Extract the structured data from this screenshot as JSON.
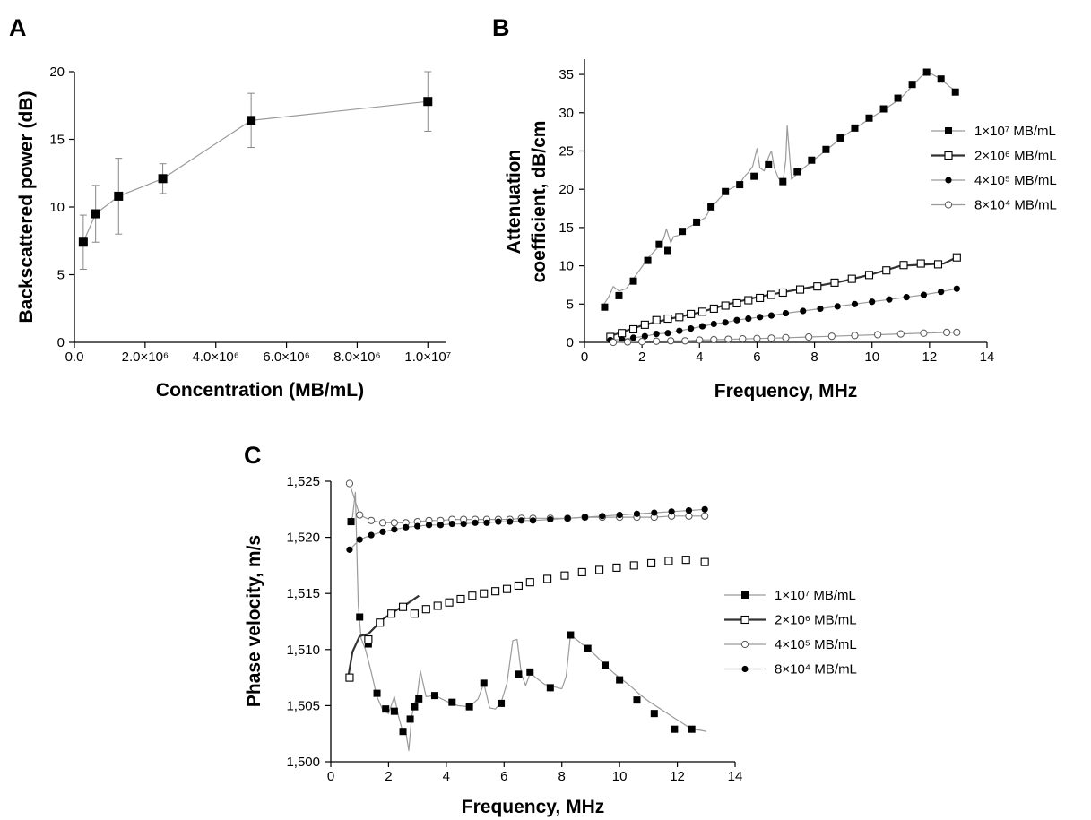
{
  "chart_data": [
    {
      "id": "A",
      "type": "line",
      "panel_label": "A",
      "xlabel": "Concentration (MB/mL)",
      "ylabel": "Backscattered power (dB)",
      "xlim": [
        0,
        10500000
      ],
      "ylim": [
        0,
        20
      ],
      "x_ticks": [
        0,
        2000000,
        4000000,
        6000000,
        8000000,
        10000000
      ],
      "x_tick_labels": [
        "0.0",
        "2.0×10⁶",
        "4.0×10⁶",
        "6.0×10⁶",
        "8.0×10⁶",
        "1.0×10⁷"
      ],
      "y_ticks": [
        0,
        5,
        10,
        15,
        20
      ],
      "y_tick_labels": [
        "0",
        "5",
        "10",
        "15",
        "20"
      ],
      "series": [
        {
          "marker": "square-filled",
          "line_color": "#9a9a9a",
          "x": [
            250000,
            600000,
            1250000,
            2500000,
            5000000,
            10000000
          ],
          "y": [
            7.4,
            9.5,
            10.8,
            12.1,
            16.4,
            17.8
          ],
          "err": [
            2.0,
            2.1,
            2.8,
            1.1,
            2.0,
            2.2
          ]
        }
      ]
    },
    {
      "id": "B",
      "type": "line",
      "panel_label": "B",
      "xlabel": "Frequency, MHz",
      "ylabel": [
        "Attenuation",
        "coefficient, dB/cm"
      ],
      "xlim": [
        0,
        14
      ],
      "ylim": [
        0,
        37
      ],
      "x_ticks": [
        0,
        2,
        4,
        6,
        8,
        10,
        12,
        14
      ],
      "x_tick_labels": [
        "0",
        "2",
        "4",
        "6",
        "8",
        "10",
        "12",
        "14"
      ],
      "y_ticks": [
        0,
        5,
        10,
        15,
        20,
        25,
        30,
        35
      ],
      "y_tick_labels": [
        "0",
        "5",
        "10",
        "15",
        "20",
        "25",
        "30",
        "35"
      ],
      "legend_position": "right",
      "series": [
        {
          "name": "1×10⁷ MB/mL",
          "marker": "square-filled",
          "line_color": "#9a9a9a",
          "line_width": 1.2,
          "markers_x": [
            0.7,
            1.2,
            1.7,
            2.2,
            2.6,
            2.9,
            3.4,
            3.9,
            4.4,
            4.9,
            5.4,
            5.9,
            6.4,
            6.9,
            7.4,
            7.9,
            8.4,
            8.9,
            9.4,
            9.9,
            10.4,
            10.9,
            11.4,
            11.9,
            12.4,
            12.9
          ],
          "markers_y": [
            4.6,
            6.1,
            8.0,
            10.7,
            12.8,
            12.0,
            14.5,
            15.7,
            17.7,
            19.7,
            20.6,
            21.7,
            23.2,
            21.0,
            22.3,
            23.8,
            25.2,
            26.7,
            28.0,
            29.3,
            30.5,
            31.9,
            33.7,
            35.3,
            34.4,
            32.7
          ],
          "curve_x": [
            0.6,
            0.85,
            1.0,
            1.2,
            1.45,
            1.7,
            1.95,
            2.2,
            2.5,
            2.75,
            2.85,
            3.0,
            3.1,
            3.3,
            3.6,
            3.9,
            4.2,
            4.4,
            4.7,
            4.95,
            5.2,
            5.4,
            5.55,
            5.7,
            5.85,
            6.0,
            6.1,
            6.25,
            6.4,
            6.5,
            6.6,
            6.75,
            6.9,
            7.0,
            7.05,
            7.2,
            7.6,
            8.0,
            8.5,
            9.0,
            9.5,
            10.0,
            10.5,
            11.0,
            11.4,
            11.7,
            11.9,
            12.1,
            12.4,
            12.7,
            13.0
          ],
          "curve_y": [
            4.5,
            6.0,
            7.3,
            6.7,
            7.0,
            8.3,
            9.6,
            11.0,
            12.2,
            13.5,
            14.8,
            13.0,
            13.8,
            14.0,
            15.0,
            15.6,
            16.3,
            17.6,
            18.8,
            19.8,
            20.3,
            20.7,
            21.6,
            22.2,
            23.0,
            25.3,
            22.8,
            22.4,
            24.2,
            25.0,
            22.8,
            21.4,
            20.9,
            23.8,
            28.3,
            21.3,
            22.7,
            23.9,
            25.4,
            26.9,
            28.2,
            29.4,
            30.6,
            31.9,
            33.5,
            34.7,
            35.3,
            35.0,
            34.4,
            33.4,
            32.6
          ]
        },
        {
          "name": "2×10⁶ MB/mL",
          "marker": "square-open",
          "line_color": "#333333",
          "line_width": 2.2,
          "markers_x": [
            0.9,
            1.3,
            1.7,
            2.1,
            2.5,
            2.9,
            3.3,
            3.7,
            4.1,
            4.5,
            4.9,
            5.3,
            5.7,
            6.1,
            6.5,
            6.9,
            7.5,
            8.1,
            8.7,
            9.3,
            9.9,
            10.5,
            11.1,
            11.7,
            12.3,
            12.95
          ],
          "markers_y": [
            0.7,
            1.2,
            1.7,
            2.3,
            2.9,
            3.1,
            3.3,
            3.7,
            4.0,
            4.4,
            4.8,
            5.1,
            5.5,
            5.8,
            6.2,
            6.5,
            6.9,
            7.3,
            7.8,
            8.3,
            8.8,
            9.4,
            10.1,
            10.3,
            10.2,
            11.1
          ],
          "curve_x": [
            0.8,
            2.0,
            3.0,
            4.0,
            5.0,
            6.0,
            7.0,
            8.0,
            9.0,
            10.0,
            11.0,
            12.0,
            12.5,
            13.0
          ],
          "curve_y": [
            0.7,
            2.2,
            3.1,
            3.9,
            5.0,
            5.9,
            6.6,
            7.3,
            8.0,
            8.9,
            10.0,
            10.2,
            10.3,
            11.2
          ]
        },
        {
          "name": "4×10⁵ MB/mL",
          "marker": "circle-filled",
          "line_color": "#9a9a9a",
          "line_width": 1.2,
          "markers_x": [
            0.9,
            1.3,
            1.7,
            2.1,
            2.5,
            2.9,
            3.3,
            3.7,
            4.1,
            4.5,
            4.9,
            5.3,
            5.7,
            6.1,
            6.5,
            7.0,
            7.6,
            8.2,
            8.8,
            9.4,
            10.0,
            10.6,
            11.2,
            11.8,
            12.4,
            12.95
          ],
          "markers_y": [
            0.3,
            0.4,
            0.6,
            0.8,
            1.1,
            1.2,
            1.5,
            1.8,
            2.1,
            2.4,
            2.6,
            2.9,
            3.1,
            3.3,
            3.5,
            3.8,
            4.1,
            4.4,
            4.7,
            5.0,
            5.3,
            5.6,
            5.9,
            6.2,
            6.6,
            7.0
          ]
        },
        {
          "name": "8×10⁴ MB/mL",
          "marker": "circle-open",
          "line_color": "#9a9a9a",
          "line_width": 1.2,
          "markers_x": [
            1.0,
            1.5,
            2.0,
            2.5,
            3.0,
            3.5,
            4.0,
            4.5,
            5.0,
            5.5,
            6.0,
            6.5,
            7.0,
            7.8,
            8.6,
            9.4,
            10.2,
            11.0,
            11.8,
            12.6,
            12.95
          ],
          "markers_y": [
            0.0,
            0.05,
            0.1,
            0.15,
            0.2,
            0.2,
            0.3,
            0.35,
            0.4,
            0.45,
            0.5,
            0.55,
            0.6,
            0.7,
            0.8,
            0.9,
            1.0,
            1.1,
            1.2,
            1.3,
            1.3
          ]
        }
      ]
    },
    {
      "id": "C",
      "type": "line",
      "panel_label": "C",
      "xlabel": "Frequency, MHz",
      "ylabel": "Phase velocity, m/s",
      "xlim": [
        0,
        14
      ],
      "ylim": [
        1500,
        1525
      ],
      "x_ticks": [
        0,
        2,
        4,
        6,
        8,
        10,
        12,
        14
      ],
      "x_tick_labels": [
        "0",
        "2",
        "4",
        "6",
        "8",
        "10",
        "12",
        "14"
      ],
      "y_ticks": [
        1500,
        1505,
        1510,
        1515,
        1520,
        1525
      ],
      "y_tick_labels": [
        "1,500",
        "1,505",
        "1,510",
        "1,515",
        "1,520",
        "1,525"
      ],
      "legend_position": "right",
      "series": [
        {
          "name": "1×10⁷ MB/mL",
          "marker": "square-filled",
          "line_color": "#9a9a9a",
          "line_width": 1.2,
          "markers_x": [
            0.7,
            1.0,
            1.3,
            1.6,
            1.9,
            2.2,
            2.5,
            2.75,
            2.9,
            3.05,
            3.6,
            4.2,
            4.8,
            5.3,
            5.9,
            6.5,
            6.9,
            7.6,
            8.3,
            8.9,
            9.5,
            10.0,
            10.6,
            11.2,
            11.9,
            12.5
          ],
          "markers_y": [
            1521.4,
            1512.9,
            1510.5,
            1506.1,
            1504.7,
            1504.5,
            1502.7,
            1503.8,
            1504.9,
            1505.6,
            1505.9,
            1505.3,
            1504.9,
            1507.0,
            1505.2,
            1507.8,
            1508.0,
            1506.6,
            1511.3,
            1510.1,
            1508.6,
            1507.3,
            1505.5,
            1504.3,
            1502.9,
            1502.9
          ],
          "curve_x": [
            0.6,
            0.75,
            0.85,
            0.95,
            1.05,
            1.2,
            1.4,
            1.6,
            1.8,
            2.0,
            2.2,
            2.35,
            2.5,
            2.6,
            2.7,
            2.8,
            2.9,
            3.0,
            3.1,
            3.3,
            3.6,
            4.0,
            4.4,
            4.8,
            5.1,
            5.3,
            5.5,
            5.7,
            5.9,
            6.1,
            6.3,
            6.45,
            6.6,
            6.75,
            6.9,
            7.1,
            7.4,
            7.7,
            8.0,
            8.15,
            8.3,
            8.6,
            8.9,
            9.2,
            9.5,
            9.8,
            10.1,
            10.4,
            10.7,
            11.0,
            11.3,
            11.6,
            11.9,
            12.2,
            12.5,
            12.8,
            13.0
          ],
          "curve_y": [
            1521.4,
            1521.8,
            1524.0,
            1514.0,
            1511.0,
            1510.0,
            1508.0,
            1505.8,
            1504.6,
            1504.3,
            1505.8,
            1504.0,
            1502.6,
            1502.6,
            1501.0,
            1504.0,
            1505.2,
            1506.0,
            1508.1,
            1505.8,
            1505.9,
            1505.4,
            1505.0,
            1504.9,
            1505.6,
            1507.0,
            1504.8,
            1504.7,
            1505.3,
            1507.0,
            1510.8,
            1510.9,
            1507.8,
            1506.8,
            1507.9,
            1507.5,
            1506.9,
            1506.7,
            1506.5,
            1507.6,
            1511.3,
            1510.7,
            1510.1,
            1509.4,
            1508.6,
            1507.9,
            1507.3,
            1506.7,
            1506.0,
            1505.4,
            1504.9,
            1504.4,
            1503.9,
            1503.4,
            1502.9,
            1502.8,
            1502.7
          ]
        },
        {
          "name": "2×10⁶ MB/mL",
          "marker": "square-open",
          "line_color": "#333333",
          "line_width": 2.2,
          "markers_x": [
            0.65,
            1.3,
            1.7,
            2.1,
            2.5,
            2.9,
            3.3,
            3.7,
            4.1,
            4.5,
            4.9,
            5.3,
            5.7,
            6.1,
            6.5,
            6.9,
            7.5,
            8.1,
            8.7,
            9.3,
            9.9,
            10.5,
            11.1,
            11.7,
            12.3,
            12.95
          ],
          "markers_y": [
            1507.5,
            1510.9,
            1512.4,
            1513.2,
            1513.8,
            1513.2,
            1513.6,
            1513.9,
            1514.2,
            1514.5,
            1514.8,
            1515.0,
            1515.2,
            1515.4,
            1515.7,
            1516.0,
            1516.3,
            1516.6,
            1516.9,
            1517.1,
            1517.3,
            1517.5,
            1517.7,
            1517.9,
            1518.0,
            1517.8
          ],
          "curve_x": [
            0.6,
            0.75,
            1.0,
            1.3,
            1.8,
            2.2,
            2.6,
            3.05
          ],
          "curve_y": [
            1507.5,
            1509.8,
            1511.2,
            1511.4,
            1512.7,
            1513.4,
            1514.0,
            1514.8
          ]
        },
        {
          "name": "4×10⁵ MB/mL",
          "marker": "circle-open",
          "line_color": "#9a9a9a",
          "line_width": 1.2,
          "markers_x": [
            0.65,
            1.0,
            1.4,
            1.8,
            2.2,
            2.6,
            3.0,
            3.4,
            3.8,
            4.2,
            4.6,
            5.0,
            5.4,
            5.8,
            6.2,
            6.6,
            7.0,
            7.6,
            8.2,
            8.8,
            9.4,
            10.0,
            10.6,
            11.2,
            11.8,
            12.4,
            12.95
          ],
          "markers_y": [
            1524.8,
            1522.0,
            1521.5,
            1521.3,
            1521.3,
            1521.3,
            1521.4,
            1521.5,
            1521.5,
            1521.6,
            1521.6,
            1521.6,
            1521.6,
            1521.6,
            1521.6,
            1521.7,
            1521.7,
            1521.7,
            1521.7,
            1521.8,
            1521.8,
            1521.8,
            1521.8,
            1521.8,
            1521.9,
            1521.9,
            1521.9
          ]
        },
        {
          "name": "8×10⁴ MB/mL",
          "marker": "circle-filled",
          "line_color": "#9a9a9a",
          "line_width": 1.2,
          "markers_x": [
            0.65,
            1.0,
            1.4,
            1.8,
            2.2,
            2.6,
            3.0,
            3.4,
            3.8,
            4.2,
            4.6,
            5.0,
            5.4,
            5.8,
            6.2,
            6.6,
            7.0,
            7.6,
            8.2,
            8.8,
            9.4,
            10.0,
            10.6,
            11.2,
            11.8,
            12.4,
            12.95
          ],
          "markers_y": [
            1518.9,
            1519.8,
            1520.2,
            1520.5,
            1520.7,
            1520.9,
            1521.0,
            1521.1,
            1521.1,
            1521.2,
            1521.2,
            1521.3,
            1521.3,
            1521.4,
            1521.4,
            1521.5,
            1521.5,
            1521.6,
            1521.7,
            1521.8,
            1521.9,
            1522.0,
            1522.1,
            1522.2,
            1522.3,
            1522.4,
            1522.5
          ]
        }
      ]
    }
  ]
}
